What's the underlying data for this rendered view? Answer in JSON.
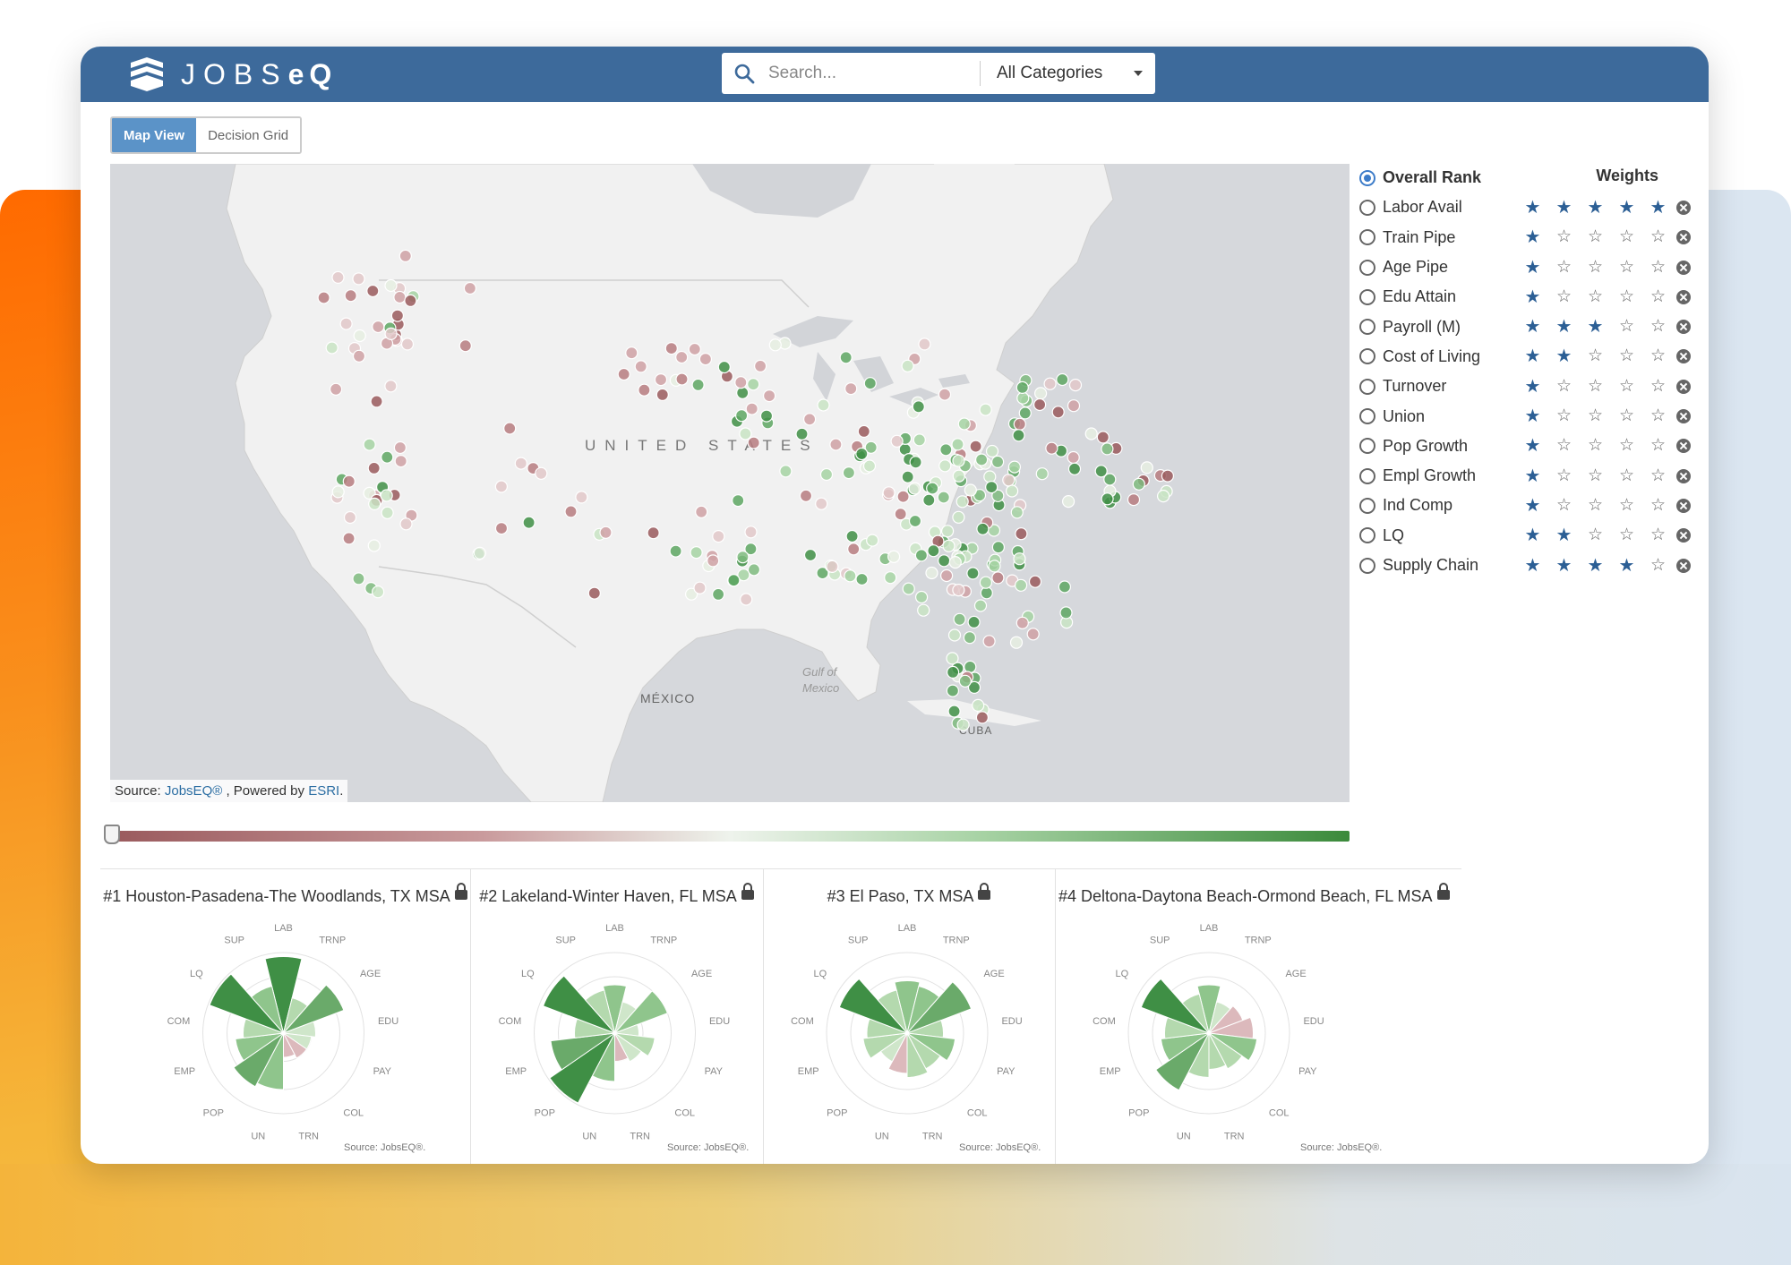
{
  "app": {
    "logo_text": "JOBS",
    "logo_bold": "eQ",
    "search": {
      "placeholder": "Search...",
      "category": "All Categories"
    }
  },
  "view_tabs": [
    {
      "label": "Map View",
      "active": true
    },
    {
      "label": "Decision Grid",
      "active": false
    }
  ],
  "map": {
    "labels": {
      "usa": "UNITED STATES",
      "mexico": "MÉXICO",
      "gulf": "Gulf of",
      "gulf2": "Mexico",
      "cuba": "CUBA"
    },
    "source_prefix": "Source: ",
    "source_link": "JobsEQ®",
    "source_mid": " , Powered by ",
    "source_esri": "ESRI",
    "source_end": "."
  },
  "panel": {
    "overall_label": "Overall Rank",
    "weights_label": "Weights",
    "rows": [
      {
        "label": "Labor Avail",
        "stars": 5
      },
      {
        "label": "Train Pipe",
        "stars": 1
      },
      {
        "label": "Age Pipe",
        "stars": 1
      },
      {
        "label": "Edu Attain",
        "stars": 1
      },
      {
        "label": "Payroll (M)",
        "stars": 3
      },
      {
        "label": "Cost of Living",
        "stars": 2
      },
      {
        "label": "Turnover",
        "stars": 1
      },
      {
        "label": "Union",
        "stars": 1
      },
      {
        "label": "Pop Growth",
        "stars": 1
      },
      {
        "label": "Empl Growth",
        "stars": 1
      },
      {
        "label": "Ind Comp",
        "stars": 1
      },
      {
        "label": "LQ",
        "stars": 2
      },
      {
        "label": "Supply Chain",
        "stars": 4
      }
    ]
  },
  "radar_axes": [
    "LAB",
    "TRNP",
    "AGE",
    "EDU",
    "PAY",
    "COL",
    "TRN",
    "UN",
    "POP",
    "EMP",
    "COM",
    "LQ",
    "SUP"
  ],
  "cards": [
    {
      "title": "#1 Houston-Pasadena-The Woodlands, TX MSA",
      "source": "Source: JobsEQ®."
    },
    {
      "title": "#2 Lakeland-Winter Haven, FL MSA",
      "source": "Source: JobsEQ®."
    },
    {
      "title": "#3 El Paso, TX MSA",
      "source": "Source: JobsEQ®."
    },
    {
      "title": "#4 Deltona-Daytona Beach-Ormond Beach, FL MSA",
      "source": "Source: JobsEQ®."
    }
  ],
  "colors": {
    "header": "#3d6a9b",
    "accent": "#5b93c8",
    "star": "#2c5f95",
    "green_dark": "#3b8a3b",
    "red_dark": "#9a5a5d"
  }
}
